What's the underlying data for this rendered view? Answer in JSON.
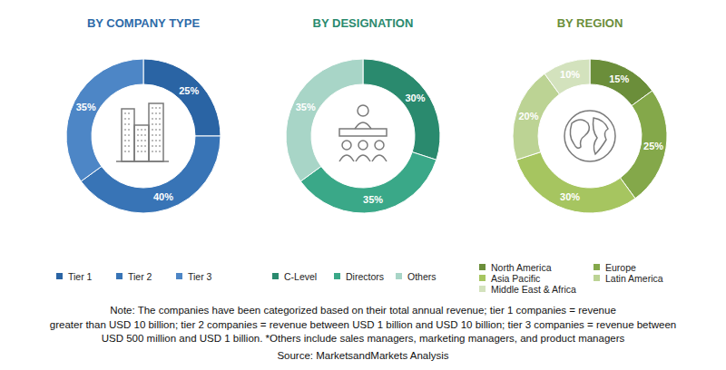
{
  "chart_data": [
    {
      "type": "pie",
      "title": "BY COMPANY TYPE",
      "categories": [
        "Tier 1",
        "Tier 2",
        "Tier 3"
      ],
      "values": [
        25,
        40,
        35
      ],
      "value_labels": [
        "25%",
        "40%",
        "35%"
      ],
      "colors": [
        "#2a64a4",
        "#3874b6",
        "#4d86c6"
      ],
      "data_labels": true,
      "legend": "bottom"
    },
    {
      "type": "pie",
      "title": "BY DESIGNATION",
      "categories": [
        "C-Level",
        "Directors",
        "Others"
      ],
      "values": [
        30,
        35,
        35
      ],
      "value_labels": [
        "30%",
        "35%",
        "35%"
      ],
      "colors": [
        "#2a8a6e",
        "#3aa888",
        "#a8d5c7"
      ],
      "data_labels": true,
      "legend": "bottom"
    },
    {
      "type": "pie",
      "title": "BY REGION",
      "categories": [
        "North America",
        "Europe",
        "Asia Pacific",
        "Latin America",
        "Middle East & Africa"
      ],
      "values": [
        15,
        25,
        30,
        20,
        10
      ],
      "value_labels": [
        "15%",
        "25%",
        "30%",
        "20%",
        "10%"
      ],
      "colors": [
        "#6b8e3a",
        "#84a84a",
        "#a6c560",
        "#bcd394",
        "#d3e2bd"
      ],
      "data_labels": true,
      "legend": "bottom"
    }
  ],
  "note": [
    "Note: The companies have been categorized based on their total annual revenue; tier 1 companies = revenue",
    "greater than USD 10 billion; tier 2 companies = revenue between USD 1 billion and USD 10 billion; tier 3 companies = revenue between",
    "USD 500 million and USD 1 billion. *Others include sales managers, marketing managers, and product managers"
  ],
  "source": "Source: MarketsandMarkets Analysis"
}
